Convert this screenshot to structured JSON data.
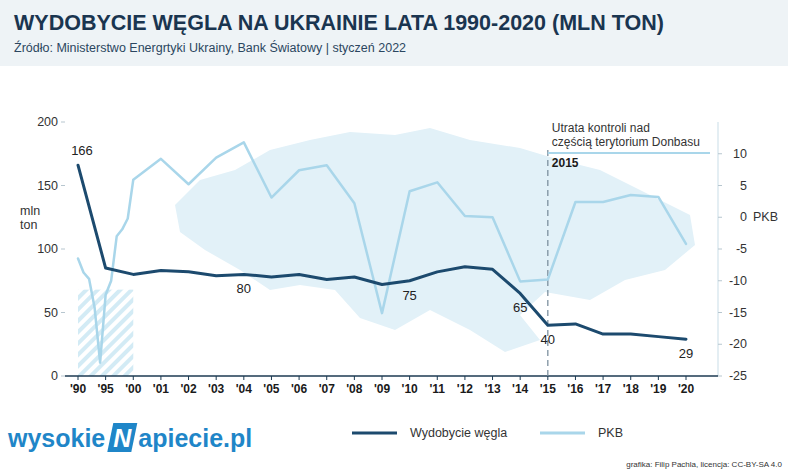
{
  "chart_data": {
    "type": "line",
    "title": "WYDOBYCIE WĘGLA NA UKRAINIE LATA 1990-2020 (MLN TON)",
    "subtitle": "Źródło: Ministerstwo Energrtyki Ukrainy, Bank Światowy | styczeń 2022",
    "y_label": "mln ton",
    "y2_label": "PKB",
    "xlim": [
      1990,
      2020
    ],
    "xticks": [
      {
        "value": 1990,
        "label": "'90"
      },
      {
        "value": 1995,
        "label": "'95"
      },
      {
        "value": 2000,
        "label": "'00"
      },
      {
        "value": 2001,
        "label": "'01"
      },
      {
        "value": 2002,
        "label": "'02"
      },
      {
        "value": 2003,
        "label": "'03"
      },
      {
        "value": 2004,
        "label": "'04"
      },
      {
        "value": 2005,
        "label": "'05"
      },
      {
        "value": 2006,
        "label": "'06"
      },
      {
        "value": 2007,
        "label": "'07"
      },
      {
        "value": 2008,
        "label": "'08"
      },
      {
        "value": 2009,
        "label": "'09"
      },
      {
        "value": 2010,
        "label": "'10"
      },
      {
        "value": 2011,
        "label": "'11"
      },
      {
        "value": 2012,
        "label": "'12"
      },
      {
        "value": 2013,
        "label": "'13"
      },
      {
        "value": 2014,
        "label": "'14"
      },
      {
        "value": 2015,
        "label": "'15"
      },
      {
        "value": 2016,
        "label": "'16"
      },
      {
        "value": 2017,
        "label": "'17"
      },
      {
        "value": 2018,
        "label": "'18"
      },
      {
        "value": 2019,
        "label": "'19"
      },
      {
        "value": 2020,
        "label": "'20"
      }
    ],
    "ylim": [
      0,
      200
    ],
    "yticks": [
      0,
      50,
      100,
      150,
      200
    ],
    "y2lim": [
      -25,
      15
    ],
    "y2ticks": [
      -25,
      -20,
      -15,
      -10,
      -5,
      0,
      5,
      10
    ],
    "series": [
      {
        "name": "Wydobycie węgla",
        "color": "#1c4a6e",
        "x": [
          1990,
          1995,
          2000,
          2001,
          2002,
          2003,
          2004,
          2005,
          2006,
          2007,
          2008,
          2009,
          2010,
          2011,
          2012,
          2013,
          2014,
          2015,
          2016,
          2017,
          2018,
          2019,
          2020
        ],
        "values": [
          166,
          85,
          80,
          83,
          82,
          79,
          80,
          78,
          80,
          76,
          78,
          72,
          75,
          82,
          86,
          84,
          65,
          40,
          41,
          33,
          33,
          31,
          29
        ],
        "value_labels": [
          "166",
          null,
          null,
          null,
          null,
          null,
          "80",
          null,
          null,
          null,
          null,
          null,
          "75",
          null,
          null,
          null,
          "65",
          "40",
          null,
          null,
          null,
          null,
          "29"
        ]
      },
      {
        "name": "PKB",
        "color": "#a9d6ea",
        "axis": "y2",
        "x": [
          1990,
          1991,
          1992,
          1993,
          1994,
          1995,
          1996,
          1997,
          1998,
          1999,
          2000,
          2001,
          2002,
          2003,
          2004,
          2005,
          2006,
          2007,
          2008,
          2009,
          2010,
          2011,
          2012,
          2013,
          2014,
          2015,
          2016,
          2017,
          2018,
          2019,
          2020
        ],
        "values": [
          -6.5,
          -8.7,
          -9.7,
          -14.2,
          -22.9,
          -12.2,
          -10,
          -3,
          -1.9,
          -0.2,
          5.9,
          9.2,
          5.2,
          9.4,
          11.8,
          3.1,
          7.4,
          8.2,
          2.2,
          -15.1,
          4.1,
          5.5,
          0.2,
          0,
          -10.1,
          -9.8,
          2.4,
          2.4,
          3.5,
          3.2,
          -4.2
        ]
      }
    ],
    "legend": "bottom",
    "highlight": {
      "x": [
        1990,
        2000
      ],
      "y": [
        0,
        68
      ]
    },
    "annotations": [
      {
        "x": 2015,
        "label": "2015",
        "text": [
          "Utrata kontroli nad",
          "częścią terytorium Donbasu"
        ]
      }
    ],
    "logo": {
      "prefix": "wysokie",
      "mark": "N",
      "suffix": "apiecie.pl"
    },
    "credit": "grafika: Filip Pachla, licencja: CC-BY-SA 4.0"
  }
}
